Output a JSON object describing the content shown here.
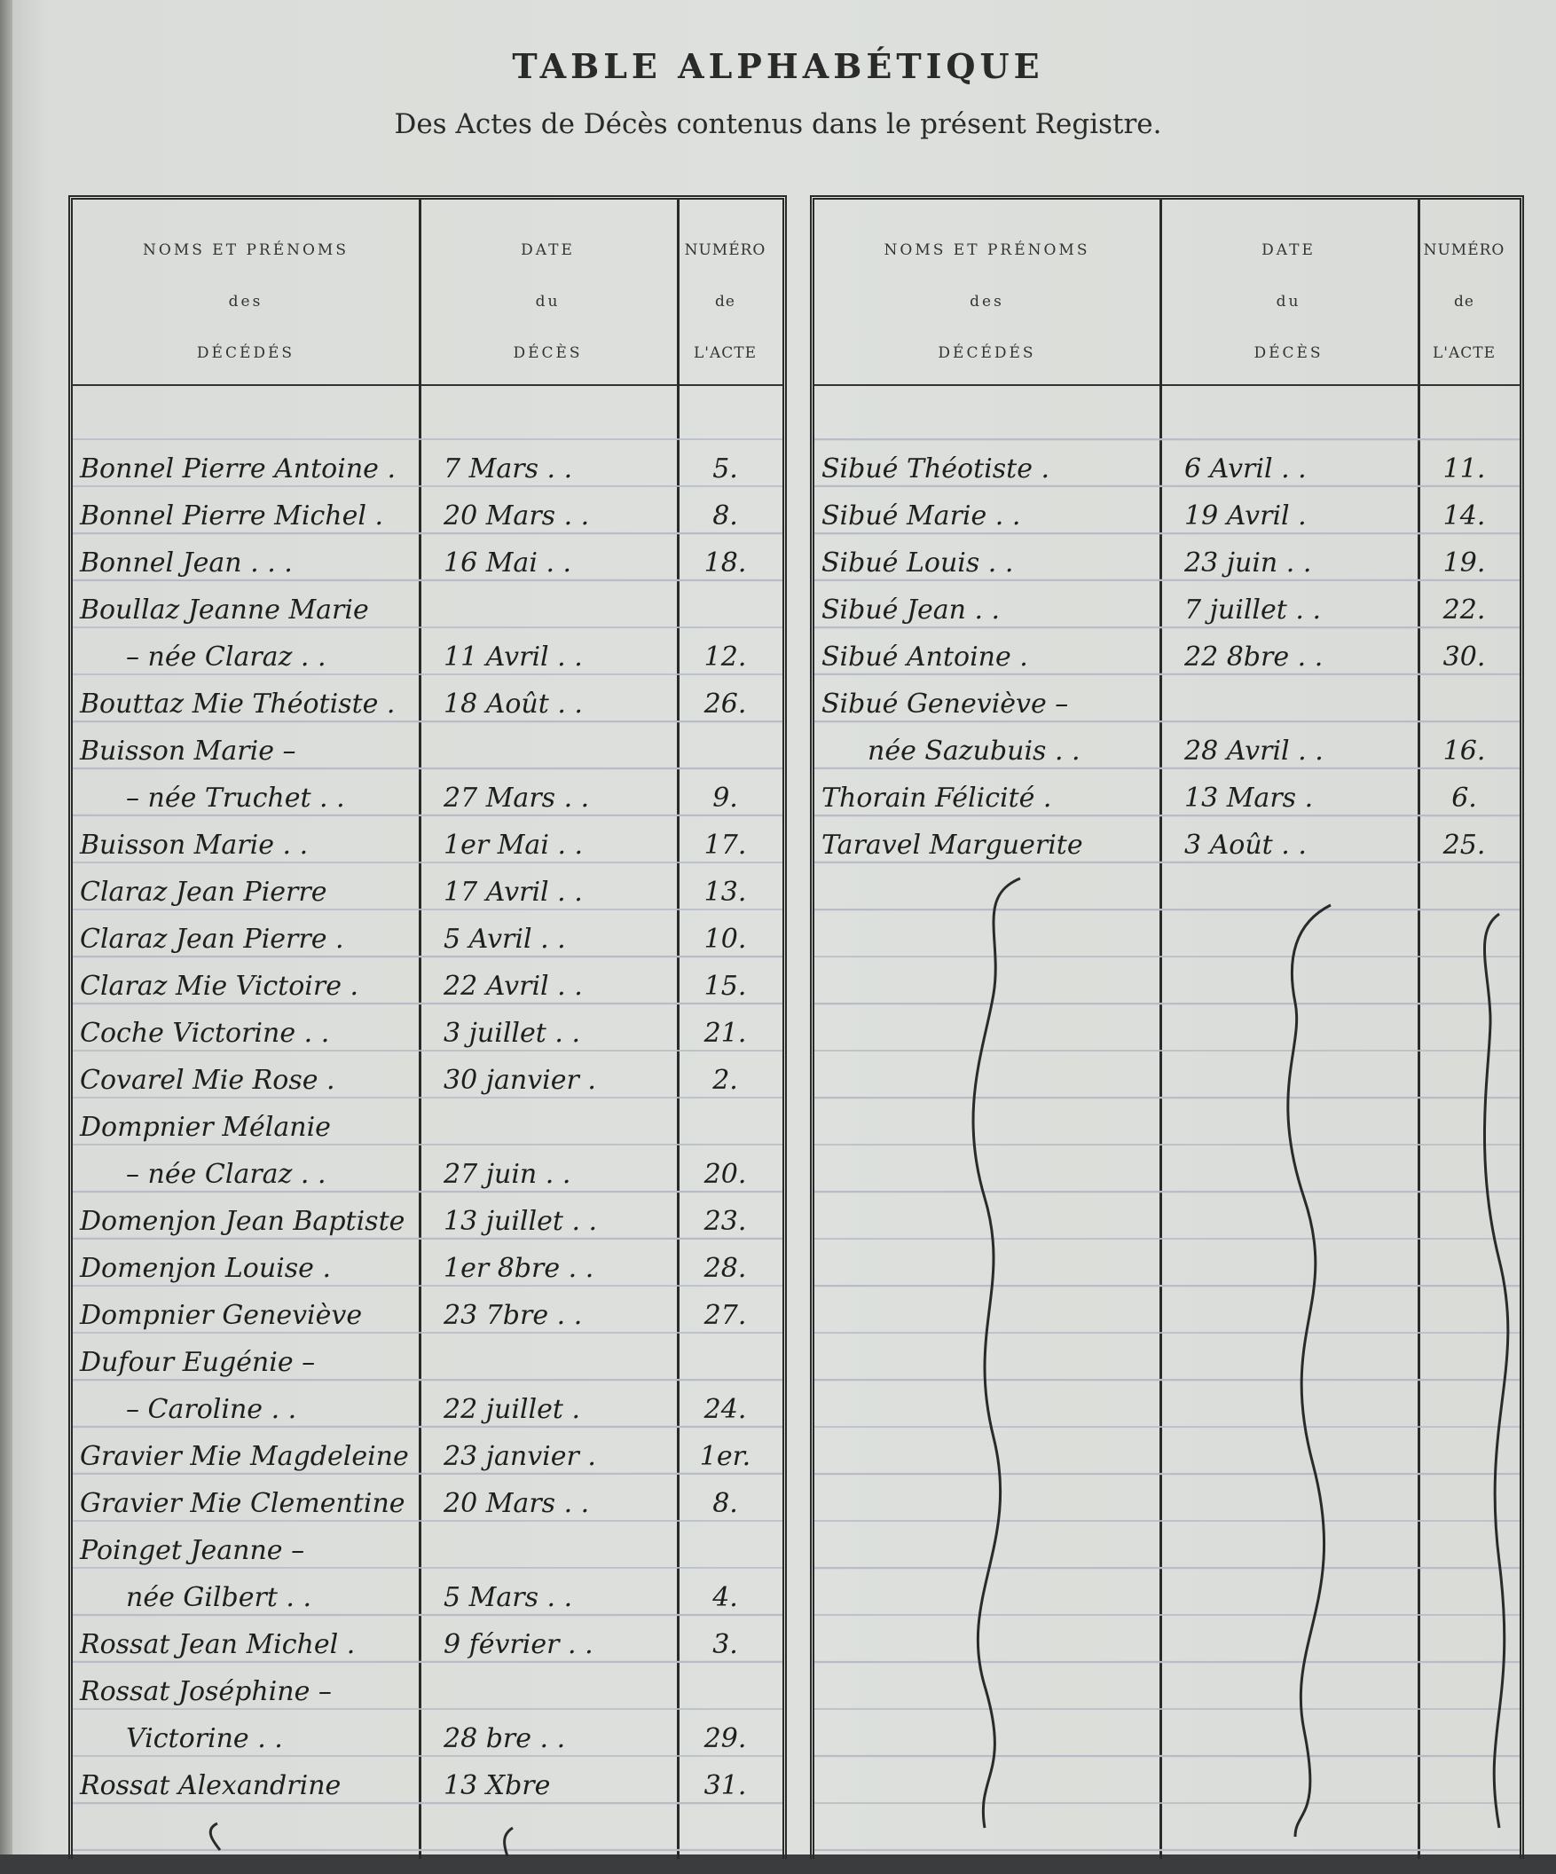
{
  "title": "TABLE ALPHABÉTIQUE",
  "subtitle": "Des Actes de Décès contenus dans le présent Registre.",
  "headers": {
    "names": [
      "NOMS ET PRÉNOMS",
      "des",
      "DÉCÉDÉS"
    ],
    "date": [
      "DATE",
      "du",
      "DÉCÈS"
    ],
    "number": [
      "NUMÉRO",
      "de",
      "L'ACTE"
    ]
  },
  "left_entries": [
    {
      "name": "Bonnel Pierre Antoine .",
      "date": "7 Mars . .",
      "act": "5."
    },
    {
      "name": "Bonnel Pierre Michel .",
      "date": "20 Mars . .",
      "act": "8."
    },
    {
      "name": "Bonnel Jean . . .",
      "date": "16 Mai . .",
      "act": "18."
    },
    {
      "name": "Boullaz Jeanne Marie",
      "date": "",
      "act": ""
    },
    {
      "name": "– née Claraz . .",
      "date": "11 Avril . .",
      "act": "12.",
      "indent": true
    },
    {
      "name": "Bouttaz Mie Théotiste .",
      "date": "18 Août . .",
      "act": "26."
    },
    {
      "name": "Buisson Marie –",
      "date": "",
      "act": ""
    },
    {
      "name": "– née Truchet . .",
      "date": "27 Mars . .",
      "act": "9.",
      "indent": true
    },
    {
      "name": "Buisson Marie . .",
      "date": "1er Mai . .",
      "act": "17."
    },
    {
      "name": "Claraz Jean Pierre",
      "date": "17 Avril . .",
      "act": "13."
    },
    {
      "name": "Claraz Jean Pierre .",
      "date": "5 Avril . .",
      "act": "10."
    },
    {
      "name": "Claraz Mie Victoire .",
      "date": "22 Avril . .",
      "act": "15."
    },
    {
      "name": "Coche Victorine . .",
      "date": "3 juillet . .",
      "act": "21."
    },
    {
      "name": "Covarel Mie Rose .",
      "date": "30 janvier .",
      "act": "2."
    },
    {
      "name": "Dompnier Mélanie",
      "date": "",
      "act": ""
    },
    {
      "name": "– née Claraz . .",
      "date": "27 juin . .",
      "act": "20.",
      "indent": true
    },
    {
      "name": "Domenjon Jean Baptiste",
      "date": "13 juillet . .",
      "act": "23."
    },
    {
      "name": "Domenjon Louise .",
      "date": "1er 8bre . .",
      "act": "28."
    },
    {
      "name": "Dompnier Geneviève",
      "date": "23 7bre . .",
      "act": "27."
    },
    {
      "name": "Dufour Eugénie –",
      "date": "",
      "act": ""
    },
    {
      "name": "– Caroline . .",
      "date": "22 juillet .",
      "act": "24.",
      "indent": true
    },
    {
      "name": "Gravier Mie Magdeleine",
      "date": "23 janvier .",
      "act": "1er."
    },
    {
      "name": "Gravier Mie Clementine",
      "date": "20 Mars . .",
      "act": "8."
    },
    {
      "name": "Poinget Jeanne –",
      "date": "",
      "act": ""
    },
    {
      "name": "née Gilbert . .",
      "date": "5 Mars . .",
      "act": "4.",
      "indent": true
    },
    {
      "name": "Rossat Jean Michel .",
      "date": "9 février . .",
      "act": "3."
    },
    {
      "name": "Rossat Joséphine –",
      "date": "",
      "act": ""
    },
    {
      "name": "Victorine . .",
      "date": "28 bre . .",
      "act": "29.",
      "indent": true
    },
    {
      "name": "Rossat Alexandrine",
      "date": "13 Xbre",
      "act": "31."
    }
  ],
  "right_entries": [
    {
      "name": "Sibué Théotiste .",
      "date": "6 Avril . .",
      "act": "11."
    },
    {
      "name": "Sibué Marie . .",
      "date": "19 Avril .",
      "act": "14."
    },
    {
      "name": "Sibué Louis . .",
      "date": "23 juin . .",
      "act": "19."
    },
    {
      "name": "Sibué Jean . .",
      "date": "7 juillet . .",
      "act": "22."
    },
    {
      "name": "Sibué Antoine .",
      "date": "22 8bre . .",
      "act": "30."
    },
    {
      "name": "Sibué Geneviève –",
      "date": "",
      "act": ""
    },
    {
      "name": "née Sazubuis . .",
      "date": "28 Avril . .",
      "act": "16.",
      "indent": true
    },
    {
      "name": "Thorain Félicité .",
      "date": "13 Mars .",
      "act": "6."
    },
    {
      "name": "Taravel Marguerite",
      "date": "3 Août . .",
      "act": "25."
    }
  ],
  "colors": {
    "paper": "#dde0dc",
    "ink": "#1e1e1e",
    "rules": "#b9bcc6"
  }
}
